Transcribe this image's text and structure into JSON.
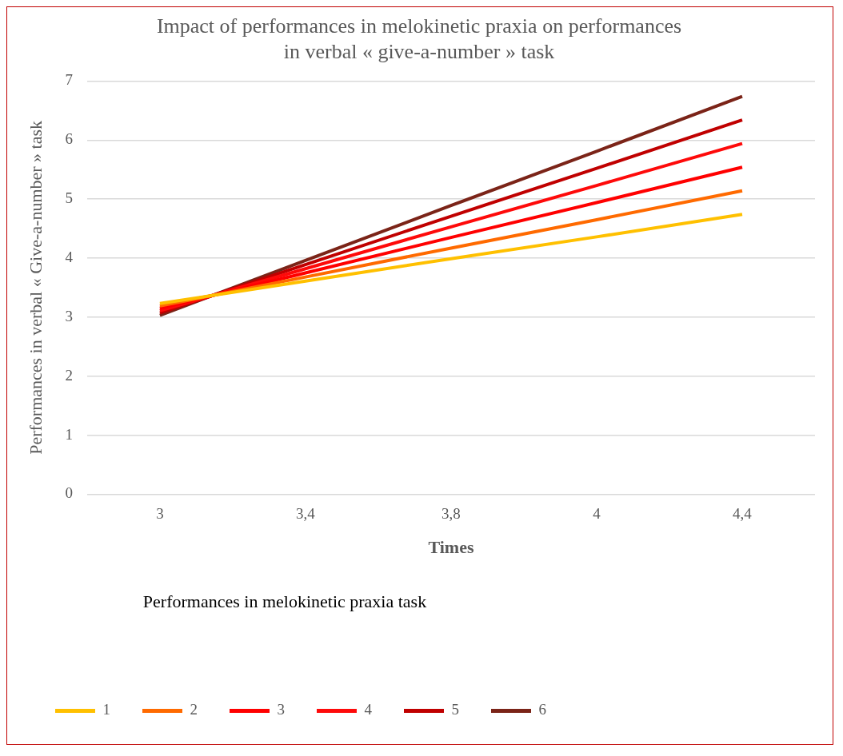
{
  "chart_data": {
    "type": "line",
    "title": "Impact of performances in melokinetic praxia on performances in verbal « give-a-number » task",
    "xlabel": "Times",
    "ylabel": "Performances in verbal « Give-a-number » task",
    "legend_title": "Performances in melokinetic praxia task",
    "categories": [
      "3",
      "3,4",
      "3,8",
      "4",
      "4,4"
    ],
    "series": [
      {
        "name": "1",
        "color": "#ffc000",
        "values": [
          3.23,
          3.61,
          3.99,
          4.36,
          4.74
        ]
      },
      {
        "name": "2",
        "color": "#ff6a00",
        "values": [
          3.19,
          3.68,
          4.17,
          4.65,
          5.14
        ]
      },
      {
        "name": "3",
        "color": "#ff0000",
        "values": [
          3.15,
          3.75,
          4.35,
          4.94,
          5.54
        ]
      },
      {
        "name": "4",
        "color": "#fe0a0a",
        "values": [
          3.11,
          3.82,
          4.53,
          5.23,
          5.94
        ]
      },
      {
        "name": "5",
        "color": "#c00000",
        "values": [
          3.07,
          3.89,
          4.71,
          5.52,
          6.34
        ]
      },
      {
        "name": "6",
        "color": "#7b2418",
        "values": [
          3.03,
          3.96,
          4.89,
          5.81,
          6.74
        ]
      }
    ],
    "ylim": [
      0,
      7
    ],
    "yticks": [
      0,
      1,
      2,
      3,
      4,
      5,
      6,
      7
    ],
    "grid": "y",
    "legend": "bottom",
    "marker": "none",
    "line_style": "solid"
  }
}
